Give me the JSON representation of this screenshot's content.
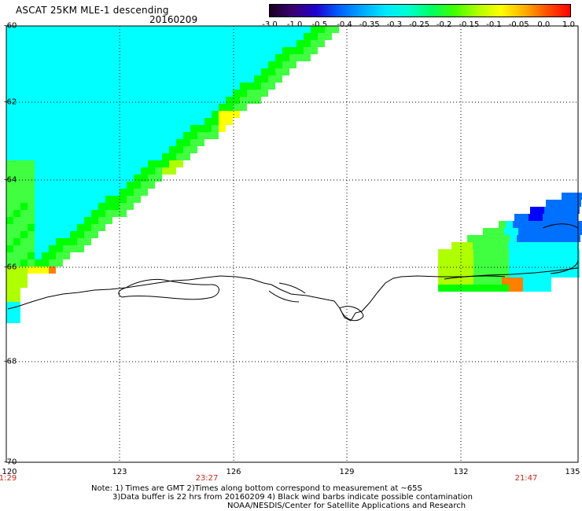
{
  "header": {
    "title": "ASCAT 25KM MLE-1 descending",
    "date": "20160209"
  },
  "colorbar": {
    "colors": [
      "#1a0020",
      "#3a0070",
      "#2000d0",
      "#0060ff",
      "#00a8ff",
      "#00e8ff",
      "#00ffd0",
      "#00ff60",
      "#40ff00",
      "#b0ff00",
      "#ffff00",
      "#ffb000",
      "#ff5000",
      "#ff0000"
    ],
    "labels": [
      "-3.0",
      "-1.0",
      "-0.5",
      "-0.4",
      "-0.35",
      "-0.3",
      "-0.25",
      "-0.2",
      "-0.15",
      "-0.1",
      "-0.05",
      "0.0",
      "1.0"
    ]
  },
  "axes": {
    "lat_labels": [
      "-60",
      "-62",
      "-64",
      "-66",
      "-68",
      "-70"
    ],
    "lon_labels": [
      "120",
      "123",
      "126",
      "129",
      "132",
      "135"
    ],
    "time_labels": [
      "1:29",
      "23:27",
      "21:47"
    ]
  },
  "notes": {
    "line1": "Note: 1) Times are GMT 2)Times along bottom correspond to measurement at ~65S",
    "line2": "3)Data buffer is 22 hrs from 20160209 4) Black wind barbs indicate possible contamination",
    "line3": "NOAA/NESDIS/Center for Satellite Applications and Research"
  },
  "map_colors": {
    "cyan": "#00ffff",
    "green": "#40ff40",
    "bright_green": "#00ff00",
    "yellow_green": "#b0ff00",
    "yellow": "#ffff00",
    "orange": "#ff8000",
    "blue": "#0070ff",
    "dark_blue": "#0000ff"
  }
}
